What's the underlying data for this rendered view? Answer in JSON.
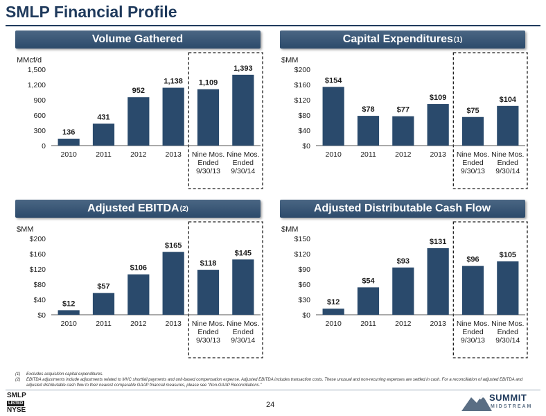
{
  "page": {
    "title": "SMLP Financial Profile",
    "page_number": "24"
  },
  "colors": {
    "bar": "#2a4a6c",
    "header": "#2c4a6b",
    "title": "#1f3a5c"
  },
  "panels": [
    {
      "title": "Volume Gathered",
      "title_sup": "",
      "chart_data": {
        "type": "bar",
        "ylabel": "MMcf/d",
        "ylim": [
          0,
          1500
        ],
        "yticks": [
          0,
          300,
          600,
          900,
          1200,
          1500
        ],
        "ytick_labels": [
          "0",
          "300",
          "600",
          "900",
          "1,200",
          "1,500"
        ],
        "categories": [
          "2010",
          "2011",
          "2012",
          "2013",
          "Nine Mos.\nEnded\n9/30/13",
          "Nine Mos.\nEnded\n9/30/14"
        ],
        "values": [
          136,
          431,
          952,
          1138,
          1109,
          1393
        ],
        "labels": [
          "136",
          "431",
          "952",
          "1,138",
          "1,109",
          "1,393"
        ],
        "highlighted": [
          4,
          5
        ]
      }
    },
    {
      "title": "Capital Expenditures",
      "title_sup": "(1)",
      "chart_data": {
        "type": "bar",
        "ylabel": "$MM",
        "ylim": [
          0,
          200
        ],
        "yticks": [
          0,
          40,
          80,
          120,
          160,
          200
        ],
        "ytick_labels": [
          "$0",
          "$40",
          "$80",
          "$120",
          "$160",
          "$200"
        ],
        "categories": [
          "2010",
          "2011",
          "2012",
          "2013",
          "Nine Mos.\nEnded\n9/30/13",
          "Nine Mos.\nEnded\n9/30/14"
        ],
        "values": [
          154,
          78,
          77,
          109,
          75,
          104
        ],
        "labels": [
          "$154",
          "$78",
          "$77",
          "$109",
          "$75",
          "$104"
        ],
        "highlighted": [
          4,
          5
        ]
      }
    },
    {
      "title": "Adjusted EBITDA",
      "title_sup": "(2)",
      "chart_data": {
        "type": "bar",
        "ylabel": "$MM",
        "ylim": [
          0,
          200
        ],
        "yticks": [
          0,
          40,
          80,
          120,
          160,
          200
        ],
        "ytick_labels": [
          "$0",
          "$40",
          "$80",
          "$120",
          "$160",
          "$200"
        ],
        "categories": [
          "2010",
          "2011",
          "2012",
          "2013",
          "Nine Mos.\nEnded\n9/30/13",
          "Nine Mos.\nEnded\n9/30/14"
        ],
        "values": [
          12,
          57,
          106,
          165,
          118,
          145
        ],
        "labels": [
          "$12",
          "$57",
          "$106",
          "$165",
          "$118",
          "$145"
        ],
        "highlighted": [
          4,
          5
        ]
      }
    },
    {
      "title": "Adjusted Distributable Cash Flow",
      "title_sup": "",
      "chart_data": {
        "type": "bar",
        "ylabel": "$MM",
        "ylim": [
          0,
          150
        ],
        "yticks": [
          0,
          30,
          60,
          90,
          120,
          150
        ],
        "ytick_labels": [
          "$0",
          "$30",
          "$60",
          "$90",
          "$120",
          "$150"
        ],
        "categories": [
          "2010",
          "2011",
          "2012",
          "2013",
          "Nine Mos.\nEnded\n9/30/13",
          "Nine Mos.\nEnded\n9/30/14"
        ],
        "values": [
          12,
          54,
          93,
          131,
          96,
          105
        ],
        "labels": [
          "$12",
          "$54",
          "$93",
          "$131",
          "$96",
          "$105"
        ],
        "highlighted": [
          4,
          5
        ]
      }
    }
  ],
  "footnotes": [
    {
      "num": "(1)",
      "text": "Excludes acquisition capital expenditures."
    },
    {
      "num": "(2)",
      "text": "EBITDA adjustments include adjustments related to MVC shortfall payments and unit-based compensation expense. Adjusted EBITDA includes transaction costs.  These unusual and non-recurring expenses are settled in cash. For a reconciliation of adjusted EBITDA and adjusted distributable cash flow to their nearest comparable GAAP financial measures, please see \"Non-GAAP Reconciliations.\""
    }
  ],
  "logos": {
    "nyse_top": "SMLP",
    "nyse_mid": "LISTED",
    "nyse_bottom": "NYSE",
    "company_name": "SUMMIT",
    "company_sub": "MIDSTREAM"
  }
}
